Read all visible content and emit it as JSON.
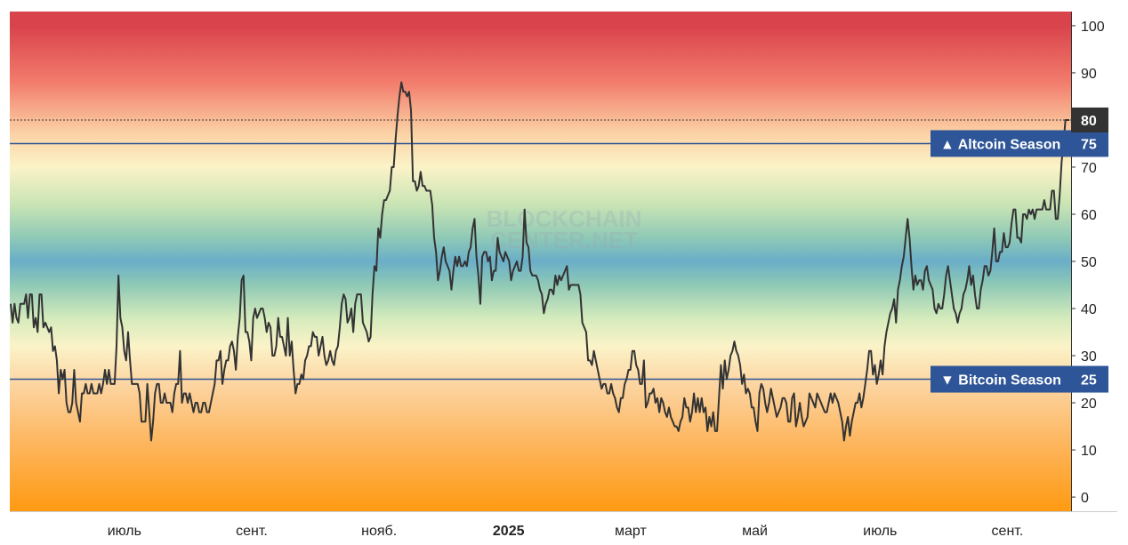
{
  "chart_data": {
    "type": "line",
    "title": "",
    "watermark": [
      "BLOCKCHAIN",
      "CENTER.NET"
    ],
    "ylim": [
      -3,
      103
    ],
    "y_ticks": [
      "0",
      "10",
      "20",
      "30",
      "40",
      "50",
      "60",
      "70",
      "80",
      "90",
      "100"
    ],
    "x_ticks": [
      {
        "label": "июль",
        "pos": 0.108,
        "bold": false
      },
      {
        "label": "сент.",
        "pos": 0.228,
        "bold": false
      },
      {
        "label": "нояб.",
        "pos": 0.348,
        "bold": false
      },
      {
        "label": "2025",
        "pos": 0.47,
        "bold": true
      },
      {
        "label": "март",
        "pos": 0.585,
        "bold": false
      },
      {
        "label": "май",
        "pos": 0.702,
        "bold": false
      },
      {
        "label": "июль",
        "pos": 0.82,
        "bold": false
      },
      {
        "label": "сент.",
        "pos": 0.94,
        "bold": false
      }
    ],
    "thresholds": [
      {
        "name": "Altcoin Season",
        "label": "▲ Altcoin Season",
        "value": 75,
        "value_label": "75",
        "color": "#2e5597"
      },
      {
        "name": "Bitcoin Season",
        "label": "▼ Bitcoin Season",
        "value": 25,
        "value_label": "25",
        "color": "#2e5597"
      }
    ],
    "last_value": 80,
    "last_value_label": "80",
    "line_color": "#333333",
    "background_gradient": {
      "stops": [
        {
          "value": 100,
          "color": "#d9434b"
        },
        {
          "value": 88,
          "color": "#f27c6c"
        },
        {
          "value": 77,
          "color": "#fbd3a6"
        },
        {
          "value": 70,
          "color": "#fbf3c8"
        },
        {
          "value": 62,
          "color": "#c9e4b4"
        },
        {
          "value": 55,
          "color": "#8fc9b6"
        },
        {
          "value": 50,
          "color": "#6aaec8"
        },
        {
          "value": 45,
          "color": "#8fc9b6"
        },
        {
          "value": 38,
          "color": "#d4ebbc"
        },
        {
          "value": 32,
          "color": "#fbf3c8"
        },
        {
          "value": 24,
          "color": "#fcd5a2"
        },
        {
          "value": 12,
          "color": "#fdb761"
        },
        {
          "value": -3,
          "color": "#ff9a12"
        }
      ]
    },
    "values": [
      41,
      37,
      41,
      38,
      37,
      41,
      41,
      41,
      43,
      38,
      43,
      43,
      36,
      38,
      35,
      43,
      43,
      36,
      37,
      36,
      35,
      36,
      31,
      32,
      29,
      22,
      27,
      25,
      27,
      20,
      18,
      18,
      20,
      27,
      20,
      18,
      16,
      22,
      22,
      24,
      22,
      22,
      24,
      22,
      22,
      22,
      24,
      22,
      24,
      27,
      24,
      27,
      24,
      24,
      24,
      32,
      47,
      38,
      36,
      31,
      29,
      35,
      29,
      24,
      24,
      24,
      24,
      22,
      16,
      16,
      16,
      24,
      18,
      12,
      16,
      22,
      24,
      24,
      20,
      20,
      22,
      20,
      20,
      20,
      18,
      22,
      24,
      24,
      31,
      20,
      22,
      22,
      20,
      22,
      20,
      18,
      20,
      20,
      18,
      18,
      20,
      20,
      18,
      18,
      20,
      22,
      24,
      29,
      29,
      31,
      24,
      27,
      29,
      29,
      32,
      33,
      31,
      27,
      34,
      38,
      46,
      47,
      35,
      35,
      33,
      29,
      38,
      40,
      38,
      39,
      40,
      40,
      38,
      35,
      37,
      36,
      30,
      30,
      32,
      38,
      34,
      34,
      32,
      30,
      38,
      30,
      33,
      27,
      22,
      24,
      24,
      26,
      25,
      29,
      30,
      32,
      32,
      35,
      34,
      34,
      30,
      32,
      34,
      30,
      28,
      29,
      31,
      29,
      28,
      31,
      32,
      36,
      41,
      43,
      42,
      37,
      38,
      40,
      35,
      41,
      43,
      43,
      43,
      37,
      36,
      35,
      33,
      34,
      43,
      49,
      48,
      57,
      55,
      60,
      63,
      63,
      64,
      65,
      70,
      70,
      76,
      81,
      85,
      88,
      86,
      86,
      85,
      86,
      82,
      67,
      67,
      65,
      66,
      69,
      66,
      66,
      65,
      65,
      65,
      62,
      55,
      52,
      46,
      48,
      51,
      53,
      50,
      49,
      48,
      44,
      48,
      51,
      49,
      51,
      49,
      49,
      50,
      49,
      52,
      53,
      57,
      59,
      51,
      47,
      41,
      51,
      52,
      52,
      50,
      51,
      46,
      48,
      48,
      55,
      52,
      51,
      50,
      52,
      51,
      50,
      46,
      48,
      49,
      50,
      48,
      48,
      51,
      61,
      54,
      53,
      48,
      47,
      47,
      47,
      46,
      44,
      43,
      39,
      41,
      42,
      44,
      44,
      43,
      47,
      45,
      47,
      46,
      47,
      48,
      49,
      44,
      45,
      45,
      45,
      45,
      45,
      43,
      37,
      36,
      35,
      29,
      29,
      28,
      31,
      29,
      27,
      25,
      23,
      24,
      24,
      22,
      22,
      24,
      22,
      21,
      19,
      18,
      21,
      21,
      24,
      25,
      27,
      27,
      31,
      31,
      28,
      27,
      24,
      24,
      29,
      19,
      20,
      22,
      22,
      23,
      20,
      21,
      18,
      21,
      20,
      18,
      17,
      19,
      17,
      16,
      15,
      15,
      14,
      16,
      17,
      21,
      19,
      19,
      16,
      18,
      22,
      18,
      21,
      18,
      21,
      18,
      19,
      14,
      17,
      15,
      18,
      14,
      14,
      21,
      28,
      23,
      29,
      25,
      27,
      30,
      31,
      33,
      31,
      30,
      28,
      24,
      26,
      22,
      23,
      22,
      19,
      19,
      16,
      14,
      22,
      24,
      23,
      20,
      18,
      20,
      23,
      21,
      19,
      17,
      18,
      19,
      21,
      21,
      20,
      16,
      16,
      21,
      22,
      15,
      17,
      20,
      17,
      15,
      16,
      17,
      22,
      21,
      20,
      19,
      22,
      21,
      20,
      19,
      18,
      18,
      20,
      22,
      20,
      22,
      21,
      20,
      18,
      16,
      12,
      15,
      17,
      13,
      16,
      18,
      20,
      20,
      22,
      19,
      21,
      24,
      27,
      31,
      31,
      26,
      28,
      24,
      26,
      29,
      26,
      32,
      35,
      37,
      39,
      40,
      42,
      37,
      44,
      46,
      49,
      51,
      55,
      59,
      55,
      49,
      44,
      47,
      45,
      46,
      46,
      44,
      48,
      49,
      46,
      45,
      44,
      40,
      39,
      41,
      40,
      40,
      43,
      47,
      49,
      46,
      43,
      40,
      39,
      37,
      39,
      40,
      43,
      44,
      46,
      49,
      45,
      47,
      43,
      40,
      40,
      44,
      46,
      49,
      49,
      47,
      48,
      52,
      57,
      50,
      50,
      52,
      52,
      56,
      53,
      53,
      54,
      58,
      61,
      61,
      55,
      55,
      54,
      60,
      60,
      59,
      61,
      60,
      61,
      59,
      61,
      61,
      61,
      61,
      63,
      61,
      61,
      61,
      65,
      65,
      59,
      59,
      64,
      71,
      75,
      80,
      80,
      80
    ]
  }
}
